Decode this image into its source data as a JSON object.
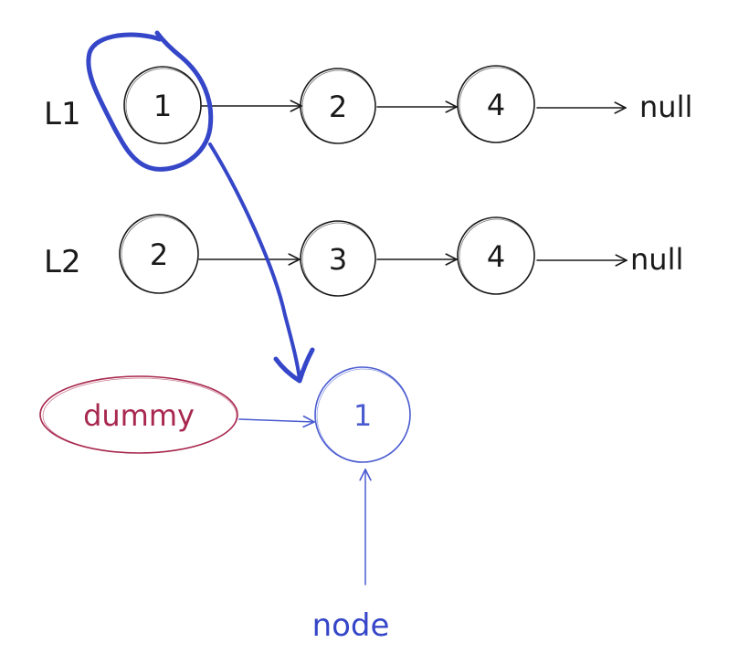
{
  "lists": [
    {
      "label": "L1",
      "nodes": [
        "1",
        "2",
        "4"
      ],
      "terminal": "null"
    },
    {
      "label": "L2",
      "nodes": [
        "2",
        "3",
        "4"
      ],
      "terminal": "null"
    }
  ],
  "result": {
    "dummy_label": "dummy",
    "node_value": "1",
    "pointer_label": "node"
  },
  "colors": {
    "ink": "#1a1a1a",
    "highlight": "#3546c8",
    "result_node": "#4a5bd0",
    "dummy": "#a8284f"
  }
}
